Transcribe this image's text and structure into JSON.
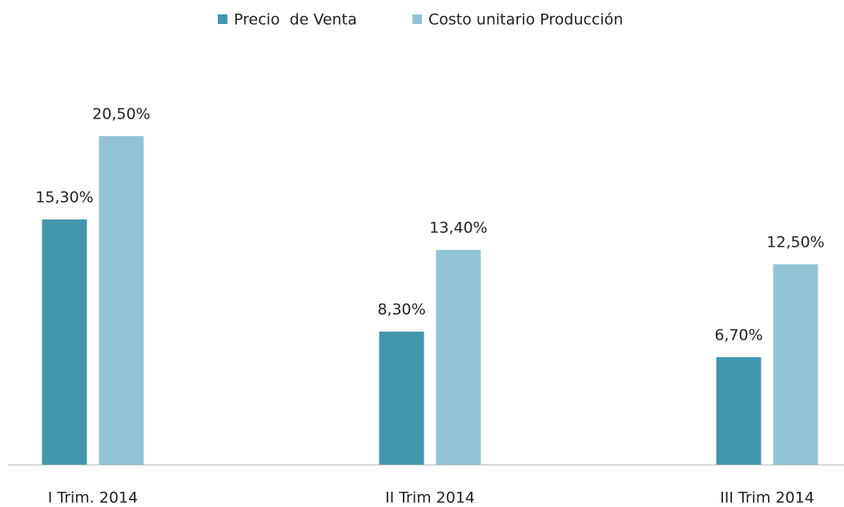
{
  "chart_data": {
    "type": "bar",
    "categories": [
      "I Trim. 2014",
      "II Trim 2014",
      "III Trim 2014"
    ],
    "series": [
      {
        "name": "Precio  de Venta",
        "color": "#4296ae",
        "values": [
          15.3,
          8.3,
          6.7
        ],
        "value_labels": [
          "15,30%",
          "8,30%",
          "6,70%"
        ]
      },
      {
        "name": "Costo unitario Producción",
        "color": "#93c4d6",
        "values": [
          20.5,
          13.4,
          12.5
        ],
        "value_labels": [
          "20,50%",
          "13,40%",
          "12,50%"
        ]
      }
    ],
    "ylim": [
      0,
      25
    ],
    "legend": "top"
  }
}
